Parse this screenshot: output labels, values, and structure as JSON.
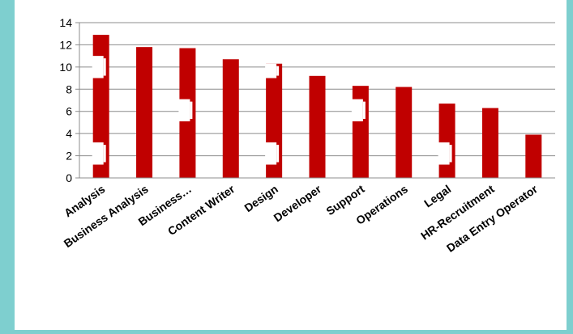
{
  "colors": {
    "background": "#7ecfcf",
    "panel": "#ffffff",
    "bar": "#c00000",
    "grid": "#8c8c8c"
  },
  "chart_data": {
    "type": "bar",
    "title": "",
    "xlabel": "",
    "ylabel": "",
    "ylim": [
      0,
      14
    ],
    "yticks": [
      0,
      2,
      4,
      6,
      8,
      10,
      12,
      14
    ],
    "grid": true,
    "legend": "none",
    "categories": [
      "Analysis",
      "Business Analysis",
      "Business…",
      "Content Writer",
      "Design",
      "Developer",
      "Support",
      "Operations",
      "Legal",
      "HR-Recruitment",
      "Data Entry Operator"
    ],
    "values": [
      12.9,
      11.8,
      11.7,
      10.7,
      10.3,
      9.2,
      8.3,
      8.2,
      6.7,
      6.3,
      3.9
    ]
  }
}
